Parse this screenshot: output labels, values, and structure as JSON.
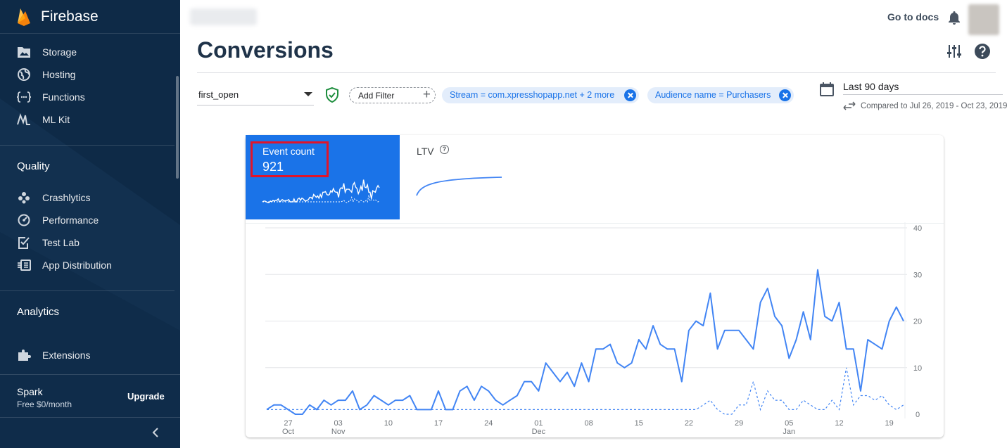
{
  "sidebar": {
    "brand": "Firebase",
    "build_items": [
      {
        "label": "Storage",
        "icon": "storage-icon"
      },
      {
        "label": "Hosting",
        "icon": "hosting-icon"
      },
      {
        "label": "Functions",
        "icon": "functions-icon"
      },
      {
        "label": "ML Kit",
        "icon": "ml-kit-icon"
      }
    ],
    "quality_title": "Quality",
    "quality_items": [
      {
        "label": "Crashlytics",
        "icon": "crashlytics-icon"
      },
      {
        "label": "Performance",
        "icon": "performance-icon"
      },
      {
        "label": "Test Lab",
        "icon": "test-lab-icon"
      },
      {
        "label": "App Distribution",
        "icon": "app-distribution-icon"
      }
    ],
    "analytics_title": "Analytics",
    "extensions_label": "Extensions",
    "plan": {
      "name": "Spark",
      "price": "Free $0/month",
      "upgrade": "Upgrade"
    }
  },
  "header": {
    "docs_link": "Go to docs",
    "page_title": "Conversions"
  },
  "filters": {
    "event": "first_open",
    "add_filter": "Add Filter",
    "chips": [
      "Stream = com.xpresshopapp.net + 2 more",
      "Audience name = Purchasers"
    ],
    "date_range": "Last 90 days",
    "comparison": "Compared to Jul 26, 2019 - Oct 23, 2019"
  },
  "card": {
    "tiles": [
      {
        "label": "Event count",
        "value": "921",
        "selected": true
      },
      {
        "label": "LTV",
        "value": "",
        "help_icon": "?"
      }
    ]
  },
  "colors": {
    "sidebar_bg": "#0e2a47",
    "accent": "#1a73e8",
    "highlight_box": "#e0142a"
  },
  "chart_data": {
    "type": "line",
    "x_start": "2019-10-24",
    "ylim": [
      0,
      40
    ],
    "yticks": [
      0,
      10,
      20,
      30,
      40
    ],
    "y_axis_side": "right",
    "grid": true,
    "xtick_labels": [
      {
        "label": "27",
        "sub": "Oct",
        "date": "2019-10-27"
      },
      {
        "label": "03",
        "sub": "Nov",
        "date": "2019-11-03"
      },
      {
        "label": "10",
        "sub": "",
        "date": "2019-11-10"
      },
      {
        "label": "17",
        "sub": "",
        "date": "2019-11-17"
      },
      {
        "label": "24",
        "sub": "",
        "date": "2019-11-24"
      },
      {
        "label": "01",
        "sub": "Dec",
        "date": "2019-12-01"
      },
      {
        "label": "08",
        "sub": "",
        "date": "2019-12-08"
      },
      {
        "label": "15",
        "sub": "",
        "date": "2019-12-15"
      },
      {
        "label": "22",
        "sub": "",
        "date": "2019-12-22"
      },
      {
        "label": "29",
        "sub": "",
        "date": "2019-12-29"
      },
      {
        "label": "05",
        "sub": "Jan",
        "date": "2020-01-05"
      },
      {
        "label": "12",
        "sub": "",
        "date": "2020-01-12"
      },
      {
        "label": "19",
        "sub": "",
        "date": "2020-01-19"
      }
    ],
    "series": [
      {
        "style": "solid",
        "values": [
          1,
          2,
          2,
          1,
          0,
          0,
          2,
          1,
          3,
          2,
          3,
          3,
          5,
          1,
          2,
          4,
          3,
          2,
          3,
          3,
          4,
          1,
          1,
          1,
          5,
          1,
          1,
          5,
          6,
          3,
          6,
          5,
          3,
          2,
          3,
          4,
          7,
          7,
          5,
          11,
          9,
          7,
          9,
          6,
          11,
          7,
          14,
          14,
          15,
          11,
          10,
          11,
          16,
          14,
          19,
          15,
          14,
          14,
          7,
          18,
          20,
          19,
          26,
          14,
          18,
          18,
          18,
          16,
          14,
          24,
          27,
          21,
          19,
          12,
          16,
          22,
          16,
          31,
          21,
          20,
          24,
          14,
          14,
          5,
          16,
          15,
          14,
          20,
          23,
          20
        ]
      },
      {
        "style": "dashed",
        "values": [
          1,
          1,
          1,
          1,
          1,
          1,
          1,
          1,
          1,
          1,
          1,
          1,
          1,
          1,
          1,
          1,
          1,
          1,
          1,
          1,
          1,
          1,
          1,
          1,
          1,
          1,
          1,
          1,
          1,
          1,
          1,
          1,
          1,
          1,
          1,
          1,
          1,
          1,
          1,
          1,
          1,
          1,
          1,
          1,
          1,
          1,
          1,
          1,
          1,
          1,
          1,
          1,
          1,
          1,
          1,
          1,
          1,
          1,
          1,
          1,
          1,
          2,
          3,
          1,
          0,
          0,
          2,
          2,
          7,
          1,
          5,
          3,
          3,
          1,
          1,
          3,
          2,
          1,
          1,
          3,
          1,
          10,
          2,
          4,
          4,
          3,
          4,
          2,
          1,
          2
        ]
      }
    ]
  }
}
